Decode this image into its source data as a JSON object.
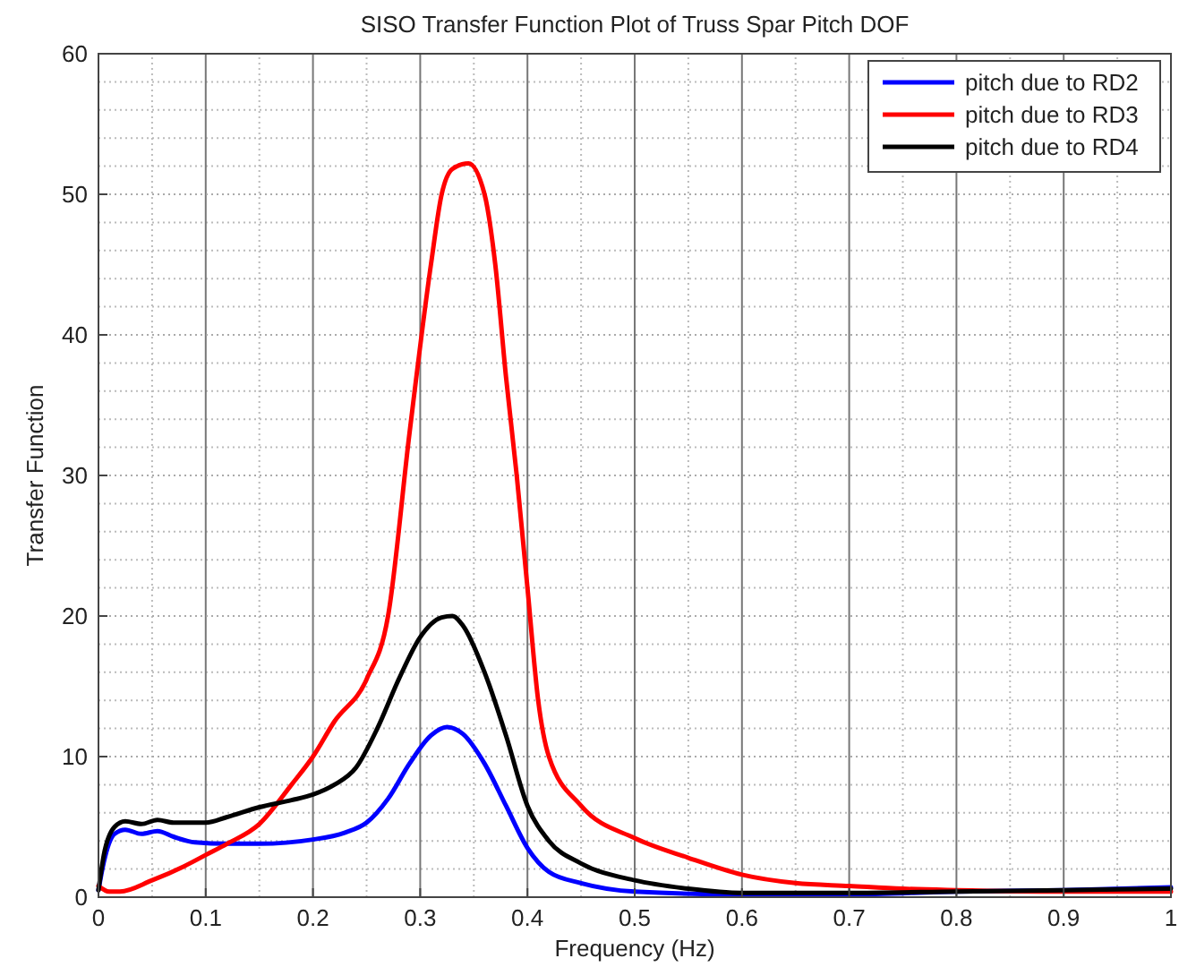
{
  "chart_data": {
    "type": "line",
    "title": "SISO Transfer Function Plot of Truss Spar Pitch DOF",
    "xlabel": "Frequency (Hz)",
    "ylabel": "Transfer Function",
    "xlim": [
      0,
      1
    ],
    "xticks": [
      0,
      0.1,
      0.2,
      0.3,
      0.4,
      0.5,
      0.6,
      0.7,
      0.8,
      0.9,
      1
    ],
    "ylim": [
      0,
      60
    ],
    "yticks": [
      0,
      10,
      20,
      30,
      40,
      50,
      60
    ],
    "grid": true,
    "legend": "top right",
    "line_style": "solid",
    "series": [
      {
        "name": "pitch due to RD2",
        "color": "#0000ff",
        "x": [
          0,
          0.005,
          0.015,
          0.025,
          0.04,
          0.055,
          0.07,
          0.09,
          0.12,
          0.15,
          0.2,
          0.23,
          0.25,
          0.27,
          0.29,
          0.31,
          0.325,
          0.34,
          0.36,
          0.38,
          0.4,
          0.42,
          0.45,
          0.5,
          0.6,
          0.7,
          0.8,
          0.9,
          1
        ],
        "values": [
          0.5,
          2.5,
          4.5,
          4.8,
          4.5,
          4.7,
          4.3,
          3.9,
          3.8,
          3.8,
          4.1,
          4.6,
          5.3,
          7,
          9.5,
          11.5,
          12.1,
          11.6,
          9.5,
          6.5,
          3.5,
          1.8,
          1,
          0.4,
          0.2,
          0.2,
          0.4,
          0.5,
          0.7
        ]
      },
      {
        "name": "pitch due to RD3",
        "color": "#ff0000",
        "x": [
          0,
          0.01,
          0.02,
          0.05,
          0.08,
          0.1,
          0.12,
          0.15,
          0.18,
          0.2,
          0.22,
          0.25,
          0.27,
          0.29,
          0.31,
          0.32,
          0.33,
          0.345,
          0.36,
          0.37,
          0.38,
          0.39,
          0.4,
          0.41,
          0.42,
          0.45,
          0.5,
          0.55,
          0.6,
          0.65,
          0.7,
          0.75,
          0.8,
          0.9,
          1
        ],
        "values": [
          0.8,
          0.4,
          0.4,
          1.2,
          2.2,
          3,
          3.8,
          5.2,
          8,
          10,
          12.5,
          15.5,
          20,
          33,
          45,
          50,
          51.8,
          52.2,
          50,
          45,
          37,
          30,
          22,
          14,
          10,
          6.5,
          4.2,
          2.8,
          1.6,
          1,
          0.8,
          0.6,
          0.5,
          0.4,
          0.4
        ]
      },
      {
        "name": "pitch due to RD4",
        "color": "#000000",
        "x": [
          0,
          0.005,
          0.015,
          0.025,
          0.04,
          0.055,
          0.07,
          0.1,
          0.12,
          0.15,
          0.18,
          0.2,
          0.22,
          0.24,
          0.26,
          0.28,
          0.3,
          0.32,
          0.33,
          0.34,
          0.36,
          0.38,
          0.4,
          0.42,
          0.45,
          0.5,
          0.55,
          0.6,
          0.7,
          0.8,
          0.9,
          1
        ],
        "values": [
          0.5,
          3,
          5,
          5.4,
          5.2,
          5.5,
          5.3,
          5.3,
          5.7,
          6.4,
          6.9,
          7.3,
          8,
          9.2,
          12,
          15.5,
          18.5,
          19.9,
          20,
          19.3,
          16,
          11.5,
          6.5,
          4,
          2.4,
          1.2,
          0.6,
          0.3,
          0.3,
          0.4,
          0.5,
          0.6
        ]
      }
    ]
  }
}
